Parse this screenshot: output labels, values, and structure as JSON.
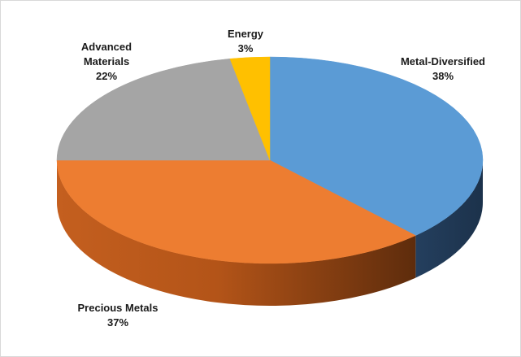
{
  "chart_data": {
    "type": "pie",
    "style": "3d",
    "title": "",
    "slices": [
      {
        "label": "Metal-Diversified",
        "value": 38,
        "value_label": "38%",
        "color": "#5b9bd5",
        "side_color": "#203b59"
      },
      {
        "label": "Precious Metals",
        "value": 37,
        "value_label": "37%",
        "color": "#ed7d31",
        "side_color": "#8a4419"
      },
      {
        "label": "Advanced Materials",
        "label_lines": [
          "Advanced",
          "Materials"
        ],
        "value": 22,
        "value_label": "22%",
        "color": "#a5a5a5",
        "side_color": "#6e6e6e"
      },
      {
        "label": "Energy",
        "value": 3,
        "value_label": "3%",
        "color": "#ffc000",
        "side_color": "#a67c00"
      }
    ]
  }
}
